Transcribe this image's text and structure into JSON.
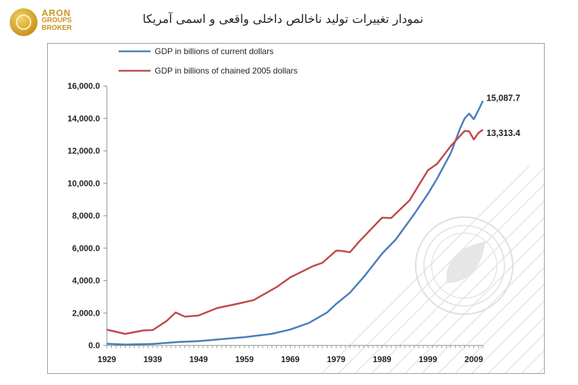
{
  "brand": {
    "line1": "ARON",
    "line2": "GROUPS",
    "line3": "BROKER"
  },
  "page_title": "نمودار تغییرات تولید ناخالص داخلی واقعی و اسمی آمریکا",
  "chart_data": {
    "type": "line",
    "title": "",
    "xlabel": "",
    "ylabel": "",
    "ylim": [
      0,
      16000
    ],
    "xlim": [
      1929,
      2011
    ],
    "y_ticks": [
      "0.0",
      "2,000.0",
      "4,000.0",
      "6,000.0",
      "8,000.0",
      "10,000.0",
      "12,000.0",
      "14,000.0",
      "16,000.0"
    ],
    "x_ticks": [
      "1929",
      "1939",
      "1949",
      "1959",
      "1969",
      "1979",
      "1989",
      "1999",
      "2009"
    ],
    "grid": false,
    "legend": "top-left",
    "series": [
      {
        "name": "GDP in billions of current dollars",
        "color": "#4a7ebb",
        "end_label": "15,087.7",
        "points": [
          [
            1929,
            103
          ],
          [
            1933,
            57
          ],
          [
            1939,
            92
          ],
          [
            1945,
            223
          ],
          [
            1949,
            267
          ],
          [
            1955,
            415
          ],
          [
            1959,
            507
          ],
          [
            1965,
            720
          ],
          [
            1969,
            985
          ],
          [
            1973,
            1383
          ],
          [
            1977,
            2031
          ],
          [
            1979,
            2562
          ],
          [
            1982,
            3253
          ],
          [
            1985,
            4218
          ],
          [
            1989,
            5658
          ],
          [
            1992,
            6539
          ],
          [
            1996,
            8100
          ],
          [
            1999,
            9353
          ],
          [
            2001,
            10287
          ],
          [
            2004,
            11868
          ],
          [
            2006,
            13378
          ],
          [
            2007,
            14000
          ],
          [
            2008,
            14300
          ],
          [
            2009,
            13950
          ],
          [
            2010,
            14500
          ],
          [
            2011,
            15087.7
          ]
        ]
      },
      {
        "name": "GDP in billions of chained 2005 dollars",
        "color": "#be4b48",
        "end_label": "13,313.4",
        "points": [
          [
            1929,
            977
          ],
          [
            1933,
            716
          ],
          [
            1937,
            930
          ],
          [
            1939,
            950
          ],
          [
            1942,
            1500
          ],
          [
            1944,
            2035
          ],
          [
            1946,
            1775
          ],
          [
            1949,
            1850
          ],
          [
            1953,
            2300
          ],
          [
            1958,
            2600
          ],
          [
            1961,
            2800
          ],
          [
            1966,
            3600
          ],
          [
            1969,
            4200
          ],
          [
            1974,
            4900
          ],
          [
            1976,
            5100
          ],
          [
            1979,
            5850
          ],
          [
            1980,
            5840
          ],
          [
            1982,
            5750
          ],
          [
            1984,
            6400
          ],
          [
            1989,
            7880
          ],
          [
            1991,
            7860
          ],
          [
            1995,
            8950
          ],
          [
            1999,
            10800
          ],
          [
            2001,
            11200
          ],
          [
            2004,
            12300
          ],
          [
            2007,
            13230
          ],
          [
            2008,
            13200
          ],
          [
            2009,
            12700
          ],
          [
            2010,
            13100
          ],
          [
            2011,
            13313.4
          ]
        ]
      }
    ]
  }
}
